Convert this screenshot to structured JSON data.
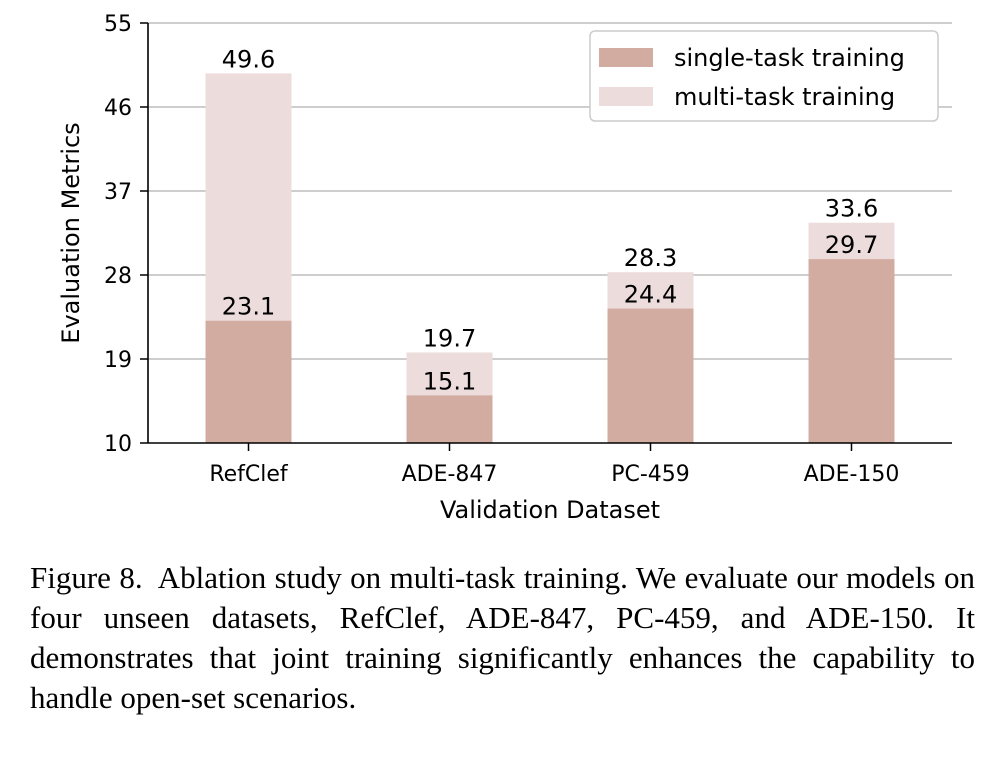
{
  "chart_data": {
    "type": "bar",
    "title": "",
    "xlabel": "Validation Dataset",
    "ylabel": "Evaluation Metrics",
    "ylim": [
      10,
      55
    ],
    "yticks": [
      10,
      19,
      28,
      37,
      46,
      55
    ],
    "grid": "horizontal",
    "legend_position": "top-right",
    "categories": [
      "RefClef",
      "ADE-847",
      "PC-459",
      "ADE-150"
    ],
    "series": [
      {
        "name": "single-task training",
        "values": [
          23.1,
          15.1,
          24.4,
          29.7
        ],
        "color": "#d2aca1"
      },
      {
        "name": "multi-task training",
        "values": [
          49.6,
          19.7,
          28.3,
          33.6
        ],
        "color": "#ecdcdc"
      }
    ]
  },
  "caption": {
    "label": "Figure 8.",
    "text": "Ablation study on multi-task training.  We evaluate our models on four unseen datasets, RefClef, ADE-847, PC-459, and ADE-150. It demonstrates that joint training significantly en­hances the capability to handle open-set scenarios."
  }
}
